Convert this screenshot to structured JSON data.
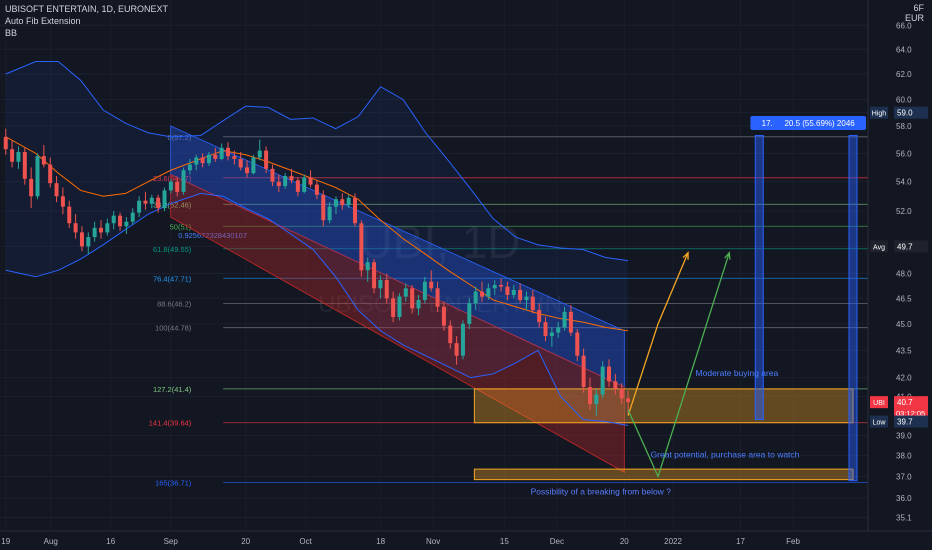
{
  "header": {
    "symbol_line": "UBISOFT ENTERTAIN, 1D, EURONEXT",
    "indicator_1": "Auto Fib Extension",
    "indicator_2": "BB"
  },
  "currency": "EUR",
  "currency_top": "6F",
  "watermark": {
    "big": "UBI, 1D",
    "small": "UBISOFT ENTERTAIN"
  },
  "colors": {
    "background": "#131722",
    "up": "#26a69a",
    "down": "#ef5350",
    "bb_band": "#2962ff",
    "bb_basis": "#ff6d00",
    "channel_blue": "#2962ff",
    "channel_red": "#c62828",
    "box": "#f5a623",
    "projection_orange": "#f5a623",
    "projection_green": "#4caf50",
    "price_tag": "#f23645"
  },
  "chart_data": {
    "type": "candlestick",
    "title": "UBISOFT ENTERTAIN, 1D, EURONEXT",
    "y_axis": {
      "ticks": [
        35.1,
        36.0,
        37.0,
        38.0,
        39.0,
        41.0,
        42.0,
        43.5,
        45.0,
        46.5,
        48.0,
        49.7,
        52.0,
        54.0,
        56.0,
        58.0,
        59.0,
        60.0,
        62.0,
        64.0,
        66.0
      ],
      "tick_labels": [
        "35.1",
        "36.0",
        "37.0",
        "38.0",
        "39.0",
        "41.0",
        "42.0",
        "43.5",
        "45.0",
        "46.5",
        "48.0",
        "49.7",
        "52.0",
        "54.0",
        "56.0",
        "58.0",
        "59.0",
        "60.0",
        "62.0",
        "64.0",
        "66.0"
      ],
      "scale": "log",
      "ylim": [
        34.5,
        68.0
      ]
    },
    "x_axis": {
      "labels": [
        "19",
        "Aug",
        "16",
        "Sep",
        "20",
        "Oct",
        "18",
        "Nov",
        "15",
        "Dec",
        "20",
        "2022",
        "17",
        "Feb"
      ],
      "label_days": [
        0,
        12,
        28,
        44,
        64,
        80,
        100,
        114,
        133,
        147,
        165,
        178,
        196,
        210
      ],
      "xlim_days": [
        -1,
        230
      ]
    },
    "price_badges": [
      {
        "name": "High",
        "value": "59.0"
      },
      {
        "name": "Avg",
        "value": "49.7"
      },
      {
        "name": "UBI",
        "value": "40.7",
        "sub": "03:12:05"
      },
      {
        "name": "Low",
        "value": "39.7"
      }
    ],
    "fib_levels": [
      {
        "label": "0(57.2)",
        "value": 57.2,
        "color": "#787b86"
      },
      {
        "label": "23.6(54.27)",
        "value": 54.27,
        "color": "#f23645"
      },
      {
        "label": "38.2(52.46)",
        "value": 52.46,
        "color": "#81c784"
      },
      {
        "label": "50(51)",
        "value": 51.0,
        "color": "#4caf50"
      },
      {
        "label": "61.8(49.55)",
        "value": 49.55,
        "color": "#089981"
      },
      {
        "label": "76.4(47.71)",
        "value": 47.71,
        "color": "#2196f3"
      },
      {
        "label": "88.6(46.2)",
        "value": 46.2,
        "color": "#787b86"
      },
      {
        "label": "100(44.78)",
        "value": 44.78,
        "color": "#787b86"
      },
      {
        "label": "127.2(41.4)",
        "value": 41.4,
        "color": "#81c784"
      },
      {
        "label": "141.4(39.64)",
        "value": 39.64,
        "color": "#f23645"
      },
      {
        "label": "165(36.71)",
        "value": 36.71,
        "color": "#2962ff"
      }
    ],
    "fib_anchor_label": "0.925672328430107",
    "candles_ohlc": [
      [
        57.2,
        57.8,
        55.9,
        56.3
      ],
      [
        56.3,
        56.9,
        55.0,
        55.4
      ],
      [
        55.4,
        56.5,
        54.9,
        56.1
      ],
      [
        56.1,
        56.4,
        53.8,
        54.2
      ],
      [
        54.2,
        55.0,
        52.2,
        53.0
      ],
      [
        53.0,
        56.0,
        52.8,
        55.8
      ],
      [
        55.8,
        56.6,
        55.0,
        55.2
      ],
      [
        55.2,
        55.7,
        53.6,
        53.9
      ],
      [
        53.9,
        54.4,
        52.6,
        53.0
      ],
      [
        53.0,
        53.6,
        51.8,
        52.3
      ],
      [
        52.3,
        52.7,
        50.9,
        51.2
      ],
      [
        51.2,
        51.8,
        50.2,
        50.6
      ],
      [
        50.6,
        51.0,
        49.4,
        49.7
      ],
      [
        49.7,
        50.6,
        49.2,
        50.3
      ],
      [
        50.3,
        51.3,
        50.0,
        50.9
      ],
      [
        50.9,
        51.4,
        50.2,
        50.6
      ],
      [
        50.6,
        51.5,
        50.4,
        51.2
      ],
      [
        51.2,
        52.0,
        50.8,
        51.7
      ],
      [
        51.7,
        51.9,
        50.7,
        51.0
      ],
      [
        51.0,
        51.6,
        50.5,
        51.3
      ],
      [
        51.3,
        52.2,
        51.1,
        51.9
      ],
      [
        51.9,
        53.0,
        51.6,
        52.7
      ],
      [
        52.7,
        53.3,
        52.1,
        52.5
      ],
      [
        52.5,
        53.1,
        52.2,
        52.9
      ],
      [
        52.9,
        53.1,
        51.9,
        52.2
      ],
      [
        52.2,
        53.6,
        52.0,
        53.4
      ],
      [
        53.4,
        54.2,
        53.2,
        54.0
      ],
      [
        54.0,
        54.3,
        53.0,
        53.3
      ],
      [
        53.3,
        55.0,
        53.1,
        54.8
      ],
      [
        54.8,
        55.6,
        54.5,
        55.2
      ],
      [
        55.2,
        55.9,
        54.8,
        55.7
      ],
      [
        55.7,
        56.0,
        55.0,
        55.3
      ],
      [
        55.3,
        56.1,
        55.1,
        55.9
      ],
      [
        55.9,
        56.4,
        55.4,
        55.6
      ],
      [
        55.6,
        56.7,
        55.5,
        56.4
      ],
      [
        56.4,
        56.8,
        55.5,
        55.8
      ],
      [
        55.8,
        56.2,
        55.2,
        55.6
      ],
      [
        55.6,
        56.1,
        54.8,
        55.0
      ],
      [
        55.0,
        55.5,
        54.3,
        54.6
      ],
      [
        54.6,
        55.9,
        54.5,
        55.7
      ],
      [
        55.7,
        57.0,
        55.5,
        56.2
      ],
      [
        56.2,
        56.5,
        54.6,
        54.9
      ],
      [
        54.9,
        55.2,
        53.7,
        54.0
      ],
      [
        54.0,
        54.5,
        53.3,
        53.7
      ],
      [
        53.7,
        54.6,
        53.5,
        54.4
      ],
      [
        54.4,
        54.9,
        53.9,
        54.1
      ],
      [
        54.1,
        54.3,
        53.0,
        53.3
      ],
      [
        53.3,
        54.5,
        53.2,
        54.3
      ],
      [
        54.3,
        54.8,
        53.6,
        53.8
      ],
      [
        53.8,
        54.1,
        52.8,
        53.1
      ],
      [
        53.1,
        53.4,
        51.0,
        51.4
      ],
      [
        51.4,
        52.6,
        51.2,
        52.3
      ],
      [
        52.3,
        53.0,
        51.8,
        52.8
      ],
      [
        52.8,
        53.2,
        52.1,
        52.4
      ],
      [
        52.4,
        53.1,
        52.2,
        52.9
      ],
      [
        52.9,
        53.2,
        51.0,
        51.2
      ],
      [
        51.2,
        51.4,
        47.8,
        48.2
      ],
      [
        48.2,
        49.0,
        47.5,
        48.7
      ],
      [
        48.7,
        48.9,
        46.8,
        47.1
      ],
      [
        47.1,
        47.9,
        46.5,
        47.6
      ],
      [
        47.6,
        48.0,
        46.2,
        46.5
      ],
      [
        46.5,
        46.9,
        45.1,
        45.4
      ],
      [
        45.4,
        46.8,
        45.2,
        46.6
      ],
      [
        46.6,
        47.4,
        46.3,
        47.1
      ],
      [
        47.1,
        47.3,
        45.6,
        45.9
      ],
      [
        45.9,
        46.7,
        45.5,
        46.4
      ],
      [
        46.4,
        47.8,
        46.2,
        47.5
      ],
      [
        47.5,
        48.2,
        46.9,
        47.1
      ],
      [
        47.1,
        47.5,
        45.7,
        46.0
      ],
      [
        46.0,
        46.3,
        44.6,
        44.9
      ],
      [
        44.9,
        45.2,
        43.6,
        43.9
      ],
      [
        43.9,
        44.3,
        42.7,
        43.2
      ],
      [
        43.2,
        45.2,
        43.0,
        45.0
      ],
      [
        45.0,
        46.5,
        44.7,
        46.2
      ],
      [
        46.2,
        47.2,
        45.8,
        46.9
      ],
      [
        46.9,
        47.5,
        46.3,
        46.6
      ],
      [
        46.6,
        47.4,
        46.4,
        47.1
      ],
      [
        47.1,
        47.6,
        46.7,
        47.3
      ],
      [
        47.3,
        47.7,
        46.9,
        47.2
      ],
      [
        47.2,
        47.5,
        46.4,
        46.7
      ],
      [
        46.7,
        47.3,
        46.5,
        47.0
      ],
      [
        47.0,
        47.4,
        46.2,
        46.4
      ],
      [
        46.4,
        46.9,
        45.8,
        46.6
      ],
      [
        46.6,
        47.0,
        45.6,
        45.8
      ],
      [
        45.8,
        46.2,
        44.8,
        45.1
      ],
      [
        45.1,
        45.4,
        44.0,
        44.3
      ],
      [
        44.3,
        44.8,
        43.7,
        44.5
      ],
      [
        44.5,
        45.1,
        44.2,
        44.8
      ],
      [
        44.8,
        46.0,
        44.6,
        45.7
      ],
      [
        45.7,
        46.1,
        44.3,
        44.5
      ],
      [
        44.5,
        44.7,
        42.9,
        43.2
      ],
      [
        43.2,
        43.6,
        41.2,
        41.5
      ],
      [
        41.5,
        42.0,
        40.3,
        40.6
      ],
      [
        40.6,
        41.4,
        40.0,
        41.1
      ],
      [
        41.1,
        42.9,
        40.9,
        42.6
      ],
      [
        42.6,
        43.0,
        41.5,
        41.8
      ],
      [
        41.8,
        42.2,
        41.1,
        41.4
      ],
      [
        41.4,
        41.7,
        40.6,
        40.9
      ],
      [
        40.9,
        41.3,
        40.1,
        40.7
      ]
    ],
    "bollinger": {
      "days": [
        0,
        8,
        14,
        20,
        26,
        32,
        38,
        44,
        52,
        58,
        64,
        70,
        76,
        82,
        88,
        94,
        100,
        106,
        112,
        118,
        124,
        130,
        136,
        142,
        148,
        154,
        160,
        166
      ],
      "upper": [
        62.0,
        63.0,
        63.0,
        61.5,
        59.2,
        58.2,
        57.5,
        57.2,
        57.3,
        58.4,
        59.5,
        59.4,
        58.5,
        58.6,
        57.8,
        58.7,
        61.0,
        60.0,
        57.5,
        55.5,
        53.5,
        51.5,
        50.3,
        49.8,
        49.6,
        49.5,
        49.0,
        48.8
      ],
      "lower": [
        48.2,
        47.8,
        48.2,
        48.9,
        49.8,
        50.8,
        51.8,
        52.5,
        53.2,
        53.0,
        52.2,
        51.5,
        50.5,
        49.5,
        47.8,
        45.8,
        44.6,
        43.8,
        43.2,
        42.6,
        42.0,
        42.2,
        42.8,
        43.5,
        41.0,
        39.8,
        39.7,
        39.5
      ],
      "basis": [
        57.2,
        56.0,
        54.6,
        53.4,
        53.0,
        53.2,
        54.0,
        54.8,
        55.6,
        56.2,
        55.9,
        55.4,
        54.8,
        54.2,
        53.6,
        52.8,
        51.4,
        50.2,
        49.2,
        48.2,
        47.3,
        46.4,
        46.0,
        45.6,
        45.3,
        45.1,
        44.8,
        44.6
      ]
    },
    "channel": {
      "upper_line": [
        [
          44,
          58.0
        ],
        [
          165,
          44.6
        ]
      ],
      "middle_line": [
        [
          44,
          54.5
        ],
        [
          165,
          41.5
        ]
      ],
      "lower_line": [
        [
          44,
          51.6
        ],
        [
          165,
          37.2
        ]
      ]
    },
    "price_ranges": [
      {
        "label": "17.5 (43.97%) 1747",
        "from_value": 39.8,
        "to_value": 57.3
      },
      {
        "label": "20.5 (55.69%) 2046",
        "from_value": 36.8,
        "to_value": 57.3
      }
    ],
    "zones": [
      {
        "label": "Moderate buying area",
        "top": 41.4,
        "bottom": 39.64
      },
      {
        "label": "Great potential, purchase area to watch",
        "top": 37.35,
        "bottom": 36.85
      }
    ],
    "annotations": [
      "Possibility of a breaking from below ?"
    ],
    "projections": [
      {
        "name": "orange",
        "points": [
          [
            166,
            40.0
          ],
          [
            174,
            45.0
          ],
          [
            182,
            49.3
          ]
        ]
      },
      {
        "name": "green",
        "points": [
          [
            166,
            40.3
          ],
          [
            174,
            37.0
          ],
          [
            193,
            49.3
          ]
        ]
      }
    ]
  }
}
